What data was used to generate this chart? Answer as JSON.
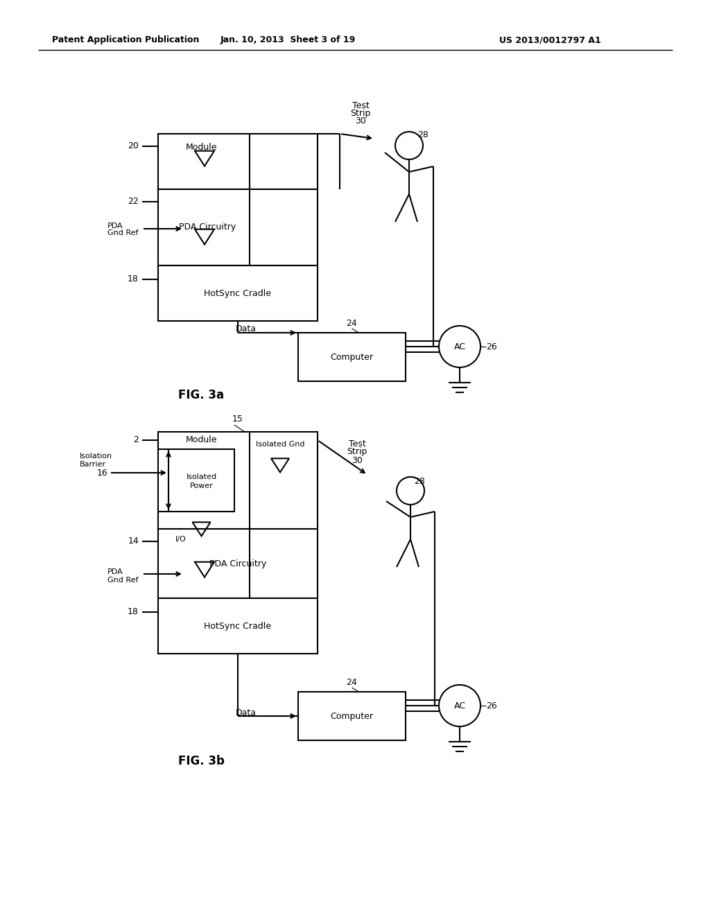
{
  "bg_color": "#ffffff",
  "text_color": "#000000",
  "header_left": "Patent Application Publication",
  "header_center": "Jan. 10, 2013  Sheet 3 of 19",
  "header_right": "US 2013/0012797 A1",
  "fig3a_label": "FIG. 3a",
  "fig3b_label": "FIG. 3b",
  "line_color": "#000000",
  "line_width": 1.5
}
